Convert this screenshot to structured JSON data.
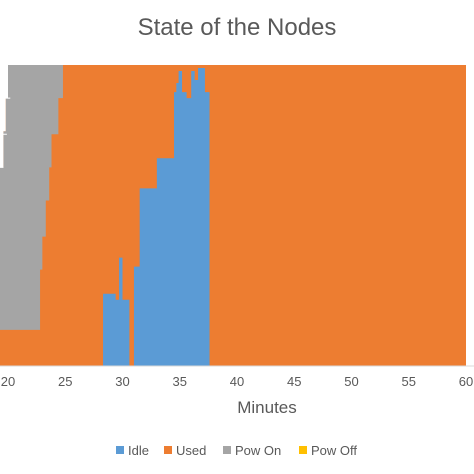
{
  "chart_data": {
    "type": "area",
    "title": "State of the Nodes",
    "xlabel": "Minutes",
    "ylabel": "",
    "xlim": [
      18,
      60
    ],
    "ylim": [
      0,
      100
    ],
    "x_ticks": [
      20,
      25,
      30,
      35,
      40,
      45,
      50,
      55,
      60
    ],
    "x_tick_labels": [
      "20",
      "25",
      "30",
      "35",
      "40",
      "45",
      "50",
      "55",
      "60"
    ],
    "stacked": true,
    "legend_position": "bottom",
    "grid": false,
    "series": [
      {
        "name": "Idle",
        "color": "#5B9BD5",
        "step_x": [
          18,
          28.3,
          28.6,
          29.4,
          29.7,
          30.0,
          30.6,
          31.0,
          31.5,
          33.0,
          34.5,
          34.7,
          34.9,
          35.2,
          35.6,
          36.0,
          36.3,
          36.6,
          36.9,
          37.2,
          37.6
        ],
        "step_y": [
          0,
          24,
          24,
          22,
          36,
          22,
          0,
          33,
          59,
          69,
          91,
          94,
          98,
          91,
          89,
          98,
          95,
          99,
          99,
          91,
          0
        ]
      },
      {
        "name": "Used",
        "color": "#ED7D31",
        "fill_to_top": true
      },
      {
        "name": "Pow On",
        "color": "#A5A5A5",
        "step_x": [
          18,
          20.5,
          22.6,
          22.8,
          23.0,
          23.3,
          23.6,
          23.8,
          24.4,
          24.8,
          60
        ],
        "step_y": [
          100,
          100,
          12,
          32,
          43,
          55,
          66,
          77,
          89,
          100,
          100
        ],
        "lower_step_x": [
          18,
          20,
          19.8,
          19.6,
          19.3,
          19.0,
          18.6,
          18.3
        ],
        "lower_step_y": [
          100,
          89,
          78,
          66,
          55,
          44,
          32,
          12
        ]
      },
      {
        "name": "Pow Off",
        "color": "#FFC000",
        "values": []
      }
    ]
  },
  "legend": {
    "items": [
      {
        "label": "Idle",
        "color": "#5B9BD5"
      },
      {
        "label": "Used",
        "color": "#ED7D31"
      },
      {
        "label": "Pow On",
        "color": "#A5A5A5"
      },
      {
        "label": "Pow Off",
        "color": "#FFC000"
      }
    ]
  },
  "colors": {
    "background": "#ffffff",
    "text": "#595959",
    "axis": "#d9d9d9"
  }
}
